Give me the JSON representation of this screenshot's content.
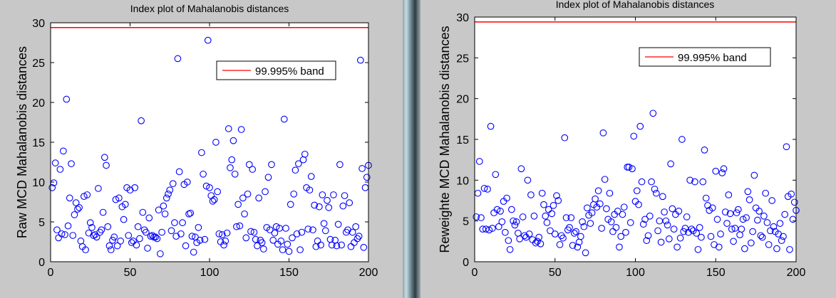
{
  "chart_data": [
    {
      "type": "scatter",
      "title": "Index plot of Mahalanobis distances",
      "xlabel": "",
      "ylabel": "Raw MCD Mahalanobis distances",
      "xlim": [
        0,
        200
      ],
      "ylim": [
        0,
        30
      ],
      "xticks": [
        0,
        50,
        100,
        150,
        200
      ],
      "yticks": [
        0,
        5,
        10,
        15,
        20,
        25,
        30
      ],
      "band": {
        "label": "99.995% band",
        "value": 29.4,
        "color": "#ff0000"
      },
      "legend": "top-right",
      "marker_color": "#0000ff",
      "values": [
        9.3,
        9.9,
        12.4,
        4.0,
        3.0,
        11.6,
        3.5,
        13.9,
        3.4,
        20.4,
        4.5,
        8.0,
        12.3,
        3.3,
        5.9,
        7.4,
        6.6,
        6.8,
        2.6,
        1.9,
        8.2,
        1.5,
        8.4,
        3.6,
        4.9,
        4.3,
        3.3,
        3.4,
        3.1,
        9.2,
        3.7,
        4.0,
        6.2,
        13.1,
        12.1,
        4.4,
        2.0,
        1.5,
        2.7,
        3.1,
        7.8,
        2.0,
        8.0,
        2.6,
        6.9,
        5.3,
        7.2,
        9.3,
        3.3,
        9.0,
        2.4,
        2.6,
        9.3,
        2.1,
        4.4,
        2.9,
        17.7,
        6.2,
        4.0,
        3.7,
        1.7,
        5.5,
        3.2,
        3.3,
        3.1,
        3.1,
        2.9,
        6.5,
        1.0,
        3.7,
        7.0,
        6.0,
        8.0,
        8.5,
        9.0,
        3.9,
        9.8,
        4.9,
        3.2,
        25.5,
        11.3,
        3.5,
        4.9,
        9.7,
        2.0,
        10.0,
        6.0,
        6.1,
        3.2,
        1.2,
        3.1,
        2.4,
        4.3,
        2.7,
        13.7,
        11.0,
        2.8,
        9.5,
        27.8,
        9.3,
        8.3,
        7.6,
        7.8,
        15.0,
        8.8,
        3.5,
        2.5,
        3.4,
        2.1,
        2.6,
        3.6,
        16.7,
        11.8,
        12.8,
        15.2,
        11.0,
        4.4,
        7.2,
        4.5,
        16.6,
        8.0,
        6.0,
        3.0,
        8.5,
        12.2,
        3.8,
        11.6,
        3.7,
        2.8,
        2.0,
        8.0,
        2.7,
        2.4,
        1.6,
        8.8,
        4.3,
        10.6,
        4.0,
        12.2,
        2.7,
        3.6,
        4.4,
        2.2,
        4.2,
        2.6,
        1.5,
        17.9,
        4.2,
        2.2,
        1.3,
        7.2,
        3.0,
        8.5,
        11.5,
        3.5,
        12.3,
        1.5,
        3.7,
        12.8,
        13.5,
        9.3,
        4.1,
        9.0,
        10.7,
        4.0,
        7.1,
        1.9,
        2.6,
        6.9,
        2.1,
        8.4,
        4.8,
        3.9,
        7.7,
        6.8,
        2.8,
        2.1,
        8.4,
        2.7,
        2.0,
        4.7,
        12.2,
        2.1,
        7.0,
        8.3,
        3.7,
        4.0,
        7.4,
        1.9,
        3.7,
        2.4,
        4.4,
        2.9,
        3.2,
        25.3,
        11.7,
        1.8,
        9.3,
        10.6,
        12.1
      ]
    },
    {
      "type": "scatter",
      "title": "Index plot of Mahalanobis distances",
      "xlabel": "",
      "ylabel": "Reweighte MCD Mahalanobis distances",
      "xlim": [
        0,
        200
      ],
      "ylim": [
        0,
        30
      ],
      "xticks": [
        0,
        50,
        100,
        150,
        200
      ],
      "yticks": [
        0,
        5,
        10,
        15,
        20,
        25,
        30
      ],
      "band": {
        "label": "99.995% band",
        "value": 29.4,
        "color": "#ff0000"
      },
      "legend": "top-right",
      "marker_color": "#0000ff",
      "values": [
        5.5,
        8.4,
        12.3,
        5.4,
        4.0,
        9.0,
        4.0,
        8.9,
        3.9,
        16.6,
        4.1,
        6.0,
        10.7,
        6.4,
        4.3,
        6.2,
        4.9,
        7.4,
        3.6,
        7.8,
        2.6,
        1.5,
        6.4,
        5.0,
        4.5,
        4.9,
        3.5,
        2.8,
        11.4,
        5.5,
        3.2,
        3.0,
        10.0,
        3.4,
        8.2,
        2.7,
        5.6,
        2.3,
        2.5,
        3.0,
        2.2,
        8.4,
        7.0,
        5.6,
        4.8,
        6.4,
        3.8,
        5.9,
        6.9,
        3.4,
        8.1,
        7.5,
        2.1,
        3.2,
        2.9,
        15.2,
        5.4,
        3.9,
        4.2,
        5.4,
        2.0,
        3.5,
        3.7,
        1.8,
        2.4,
        3.1,
        4.9,
        4.3,
        1.1,
        6.6,
        5.7,
        4.7,
        6.0,
        7.0,
        7.7,
        6.7,
        8.7,
        7.1,
        4.1,
        15.8,
        10.1,
        6.5,
        5.2,
        8.4,
        4.9,
        3.7,
        5.8,
        4.2,
        6.2,
        1.8,
        3.1,
        5.8,
        6.7,
        3.6,
        11.6,
        11.6,
        4.8,
        11.4,
        15.4,
        7.4,
        8.7,
        7.0,
        16.6,
        9.8,
        4.6,
        5.2,
        2.6,
        3.2,
        5.6,
        9.8,
        18.2,
        8.9,
        8.4,
        3.8,
        5.0,
        2.4,
        8.0,
        6.1,
        5.0,
        4.5,
        2.8,
        12.0,
        6.5,
        4.0,
        5.8,
        1.8,
        6.2,
        2.9,
        15.0,
        3.7,
        4.1,
        5.5,
        3.6,
        10.0,
        4.0,
        3.8,
        9.8,
        3.5,
        1.5,
        4.2,
        3.0,
        9.8,
        13.7,
        7.8,
        6.9,
        6.3,
        3.1,
        6.6,
        2.1,
        11.1,
        5.2,
        1.8,
        3.4,
        10.9,
        11.4,
        6.1,
        4.7,
        8.2,
        5.9,
        4.0,
        2.5,
        4.1,
        6.0,
        6.4,
        3.3,
        4.0,
        5.2,
        1.6,
        5.4,
        8.6,
        7.6,
        2.3,
        3.7,
        10.6,
        6.6,
        5.1,
        6.2,
        3.2,
        3.0,
        5.6,
        8.4,
        4.8,
        2.1,
        3.8,
        7.5,
        4.3,
        3.7,
        1.6,
        3.4,
        4.7,
        2.6,
        3.1,
        5.8,
        14.1,
        8.0,
        1.5,
        8.3,
        5.2,
        7.3,
        6.3
      ]
    }
  ]
}
